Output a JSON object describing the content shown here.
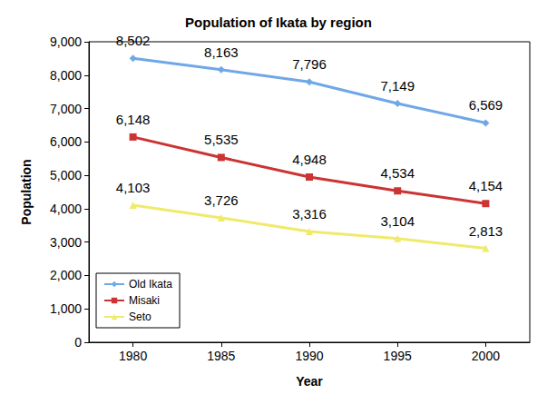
{
  "chart_data": {
    "type": "line",
    "title": "Population of Ikata by region",
    "x_label": "Year",
    "y_label": "Population",
    "categories": [
      "1980",
      "1985",
      "1990",
      "1995",
      "2000"
    ],
    "series": [
      {
        "name": "Old Ikata",
        "color": "#6fa8e6",
        "marker": "diamond",
        "values": [
          8502,
          8163,
          7796,
          7149,
          6569
        ],
        "value_labels": [
          "8,502",
          "8,163",
          "7,796",
          "7,149",
          "6,569"
        ]
      },
      {
        "name": "Misaki",
        "color": "#cc3333",
        "marker": "square",
        "values": [
          6148,
          5535,
          4948,
          4534,
          4154
        ],
        "value_labels": [
          "6,148",
          "5,535",
          "4,948",
          "4,534",
          "4,154"
        ]
      },
      {
        "name": "Seto",
        "color": "#f0ea6a",
        "marker": "triangle",
        "values": [
          4103,
          3726,
          3316,
          3104,
          2813
        ],
        "value_labels": [
          "4,103",
          "3,726",
          "3,316",
          "3,104",
          "2,813"
        ]
      }
    ],
    "ylim": [
      0,
      9000
    ],
    "yticks": [
      0,
      {
        "value": 1000,
        "label": "1,000"
      },
      {
        "value": 2000,
        "label": "2,000"
      },
      {
        "value": 3000,
        "label": "3,000"
      },
      {
        "value": 4000,
        "label": "4,000"
      },
      {
        "value": 5000,
        "label": "5,000"
      },
      {
        "value": 6000,
        "label": "6,000"
      },
      {
        "value": 7000,
        "label": "7,000"
      },
      {
        "value": 8000,
        "label": "8,000"
      },
      {
        "value": 9000,
        "label": "9,000"
      }
    ],
    "grid": false,
    "legend": "lower left",
    "data_labels": true
  }
}
